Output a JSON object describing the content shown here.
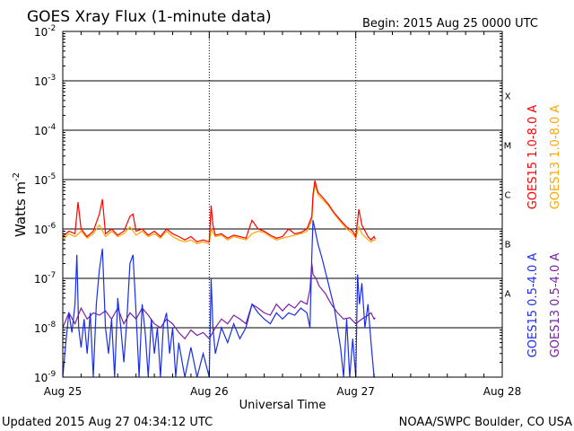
{
  "chart_data": {
    "type": "line",
    "title": "GOES Xray Flux (1-minute data)",
    "begin_label": "Begin:  2015 Aug 25 0000 UTC",
    "xlabel": "Universal Time",
    "ylabel": "Watts m",
    "ylabel_sup": "-2",
    "footer_left": "Updated 2015 Aug 27 04:34:12 UTC",
    "footer_right": "NOAA/SWPC Boulder, CO USA",
    "x_unit": "hours since 2015 Aug 25 0000 UTC",
    "x_range": [
      0,
      72
    ],
    "x_ticks": [
      {
        "value": 0,
        "label": "Aug 25"
      },
      {
        "value": 24,
        "label": "Aug 26"
      },
      {
        "value": 48,
        "label": "Aug 27"
      },
      {
        "value": 72,
        "label": "Aug 28"
      }
    ],
    "y_scale": "log",
    "y_range": [
      1e-09,
      0.01
    ],
    "y_ticks": [
      {
        "value": 0.01,
        "mant": "10",
        "exp": "-2"
      },
      {
        "value": 0.001,
        "mant": "10",
        "exp": "-3"
      },
      {
        "value": 0.0001,
        "mant": "10",
        "exp": "-4"
      },
      {
        "value": 1e-05,
        "mant": "10",
        "exp": "-5"
      },
      {
        "value": 1e-06,
        "mant": "10",
        "exp": "-6"
      },
      {
        "value": 1e-07,
        "mant": "10",
        "exp": "-7"
      },
      {
        "value": 1e-08,
        "mant": "10",
        "exp": "-8"
      },
      {
        "value": 1e-09,
        "mant": "10",
        "exp": "-9"
      }
    ],
    "flare_classes": [
      {
        "label": "X",
        "value": 0.0005
      },
      {
        "label": "M",
        "value": 5e-05
      },
      {
        "label": "C",
        "value": 5e-06
      },
      {
        "label": "B",
        "value": 5e-07
      },
      {
        "label": "A",
        "value": 5e-08
      }
    ],
    "data_gaps_hours": [
      24,
      48
    ],
    "series": [
      {
        "name": "GOES13 1.0-8.0 A",
        "color": "#ffa500",
        "points": [
          [
            0,
            6e-07
          ],
          [
            1,
            8e-07
          ],
          [
            2,
            7e-07
          ],
          [
            3,
            9e-07
          ],
          [
            4,
            6.5e-07
          ],
          [
            5,
            8e-07
          ],
          [
            6,
            1.2e-06
          ],
          [
            7,
            7e-07
          ],
          [
            8,
            9e-07
          ],
          [
            9,
            7e-07
          ],
          [
            10,
            8e-07
          ],
          [
            11,
            1.1e-06
          ],
          [
            12,
            7.5e-07
          ],
          [
            13,
            9e-07
          ],
          [
            14,
            7e-07
          ],
          [
            15,
            8e-07
          ],
          [
            16,
            6.5e-07
          ],
          [
            17,
            9e-07
          ],
          [
            18,
            7e-07
          ],
          [
            19,
            6e-07
          ],
          [
            20,
            5.5e-07
          ],
          [
            21,
            6e-07
          ],
          [
            22,
            5e-07
          ],
          [
            23,
            5.5e-07
          ],
          [
            24,
            5e-07
          ],
          [
            24.3,
            1e-06
          ],
          [
            25,
            7e-07
          ],
          [
            26,
            7.5e-07
          ],
          [
            27,
            6e-07
          ],
          [
            28,
            7e-07
          ],
          [
            29,
            6.5e-07
          ],
          [
            30,
            6e-07
          ],
          [
            31,
            8e-07
          ],
          [
            32,
            9e-07
          ],
          [
            33,
            8.5e-07
          ],
          [
            34,
            7e-07
          ],
          [
            35,
            6e-07
          ],
          [
            36,
            6.5e-07
          ],
          [
            37,
            7e-07
          ],
          [
            38,
            7.5e-07
          ],
          [
            39,
            8e-07
          ],
          [
            40,
            9e-07
          ],
          [
            40.8,
            1.5e-06
          ],
          [
            41,
            4e-06
          ],
          [
            41.3,
            8e-06
          ],
          [
            41.8,
            5e-06
          ],
          [
            42.5,
            4e-06
          ],
          [
            43.5,
            3e-06
          ],
          [
            44.5,
            2e-06
          ],
          [
            45.5,
            1.4e-06
          ],
          [
            46.5,
            1e-06
          ],
          [
            47.5,
            8e-07
          ],
          [
            48,
            6.5e-07
          ],
          [
            48.5,
            1.1e-06
          ],
          [
            49,
            8e-07
          ],
          [
            50,
            6e-07
          ],
          [
            50.5,
            5.5e-07
          ],
          [
            51,
            6e-07
          ],
          [
            51.2,
            5.8e-07
          ]
        ]
      },
      {
        "name": "GOES15 1.0-8.0 A",
        "color": "#ff0000",
        "points": [
          [
            0,
            7e-07
          ],
          [
            1,
            9e-07
          ],
          [
            2,
            8e-07
          ],
          [
            2.5,
            3.5e-06
          ],
          [
            3,
            1e-06
          ],
          [
            4,
            7e-07
          ],
          [
            5,
            9e-07
          ],
          [
            6,
            2e-06
          ],
          [
            6.5,
            4e-06
          ],
          [
            7,
            8e-07
          ],
          [
            8,
            1e-06
          ],
          [
            9,
            7.5e-07
          ],
          [
            10,
            9e-07
          ],
          [
            11,
            1.8e-06
          ],
          [
            11.5,
            2e-06
          ],
          [
            12,
            9e-07
          ],
          [
            13,
            1e-06
          ],
          [
            14,
            7.5e-07
          ],
          [
            15,
            9e-07
          ],
          [
            16,
            7e-07
          ],
          [
            17,
            1e-06
          ],
          [
            18,
            8e-07
          ],
          [
            19,
            7e-07
          ],
          [
            20,
            6e-07
          ],
          [
            21,
            7e-07
          ],
          [
            22,
            5.5e-07
          ],
          [
            23,
            6e-07
          ],
          [
            24,
            5.5e-07
          ],
          [
            24.3,
            3e-06
          ],
          [
            24.6,
            1.2e-06
          ],
          [
            25,
            7.5e-07
          ],
          [
            26,
            8e-07
          ],
          [
            27,
            6.5e-07
          ],
          [
            28,
            7.5e-07
          ],
          [
            29,
            7e-07
          ],
          [
            30,
            6.5e-07
          ],
          [
            31,
            1.5e-06
          ],
          [
            32,
            1e-06
          ],
          [
            33,
            9e-07
          ],
          [
            34,
            7.5e-07
          ],
          [
            35,
            6.5e-07
          ],
          [
            36,
            7e-07
          ],
          [
            37,
            1e-06
          ],
          [
            38,
            8e-07
          ],
          [
            39,
            8.5e-07
          ],
          [
            40,
            1e-06
          ],
          [
            40.8,
            1.8e-06
          ],
          [
            41,
            5e-06
          ],
          [
            41.3,
            9.5e-06
          ],
          [
            41.8,
            5.5e-06
          ],
          [
            42.5,
            4.5e-06
          ],
          [
            43.5,
            3.2e-06
          ],
          [
            44.5,
            2.1e-06
          ],
          [
            45.5,
            1.5e-06
          ],
          [
            46.5,
            1.1e-06
          ],
          [
            47.5,
            9e-07
          ],
          [
            48,
            7e-07
          ],
          [
            48.5,
            2.5e-06
          ],
          [
            49,
            1.2e-06
          ],
          [
            50,
            7e-07
          ],
          [
            50.5,
            6e-07
          ],
          [
            51,
            7e-07
          ],
          [
            51.2,
            6.2e-07
          ]
        ]
      },
      {
        "name": "GOES13 0.5-4.0 A",
        "color": "#7b1fa2",
        "points": [
          [
            0,
            1e-08
          ],
          [
            1,
            2e-08
          ],
          [
            2,
            1.2e-08
          ],
          [
            3,
            2.5e-08
          ],
          [
            4,
            1.5e-08
          ],
          [
            5,
            2e-08
          ],
          [
            6,
            1.8e-08
          ],
          [
            7,
            2.2e-08
          ],
          [
            8,
            1.5e-08
          ],
          [
            9,
            2.5e-08
          ],
          [
            10,
            1.2e-08
          ],
          [
            11,
            2e-08
          ],
          [
            12,
            1.5e-08
          ],
          [
            13,
            2.5e-08
          ],
          [
            14,
            1.8e-08
          ],
          [
            15,
            1.2e-08
          ],
          [
            16,
            1e-08
          ],
          [
            17,
            1.5e-08
          ],
          [
            18,
            1.2e-08
          ],
          [
            19,
            8e-09
          ],
          [
            20,
            6e-09
          ],
          [
            21,
            9e-09
          ],
          [
            22,
            7e-09
          ],
          [
            23,
            8e-09
          ],
          [
            24,
            6e-09
          ],
          [
            25,
            1e-08
          ],
          [
            26,
            1.5e-08
          ],
          [
            27,
            1.2e-08
          ],
          [
            28,
            1.8e-08
          ],
          [
            29,
            1.5e-08
          ],
          [
            30,
            1.2e-08
          ],
          [
            31,
            3e-08
          ],
          [
            32,
            2.5e-08
          ],
          [
            33,
            2e-08
          ],
          [
            34,
            1.8e-08
          ],
          [
            35,
            3e-08
          ],
          [
            36,
            2.2e-08
          ],
          [
            37,
            3e-08
          ],
          [
            38,
            2.5e-08
          ],
          [
            39,
            3.5e-08
          ],
          [
            40,
            3e-08
          ],
          [
            40.5,
            6e-08
          ],
          [
            40.8,
            2e-07
          ],
          [
            41,
            1.2e-07
          ],
          [
            41.5,
            1e-07
          ],
          [
            42,
            7e-08
          ],
          [
            43,
            5e-08
          ],
          [
            44,
            3e-08
          ],
          [
            45,
            2e-08
          ],
          [
            46,
            1.5e-08
          ],
          [
            47,
            1.6e-08
          ],
          [
            48,
            1.2e-08
          ],
          [
            49,
            1.5e-08
          ],
          [
            50,
            1.8e-08
          ],
          [
            50.5,
            2e-08
          ],
          [
            51,
            1.5e-08
          ],
          [
            51.2,
            1.6e-08
          ]
        ]
      },
      {
        "name": "GOES15 0.5-4.0 A",
        "color": "#1a2ee8",
        "points": [
          [
            0,
            1e-09
          ],
          [
            0.5,
            5e-09
          ],
          [
            1,
            2e-08
          ],
          [
            1.5,
            8e-09
          ],
          [
            2,
            3e-08
          ],
          [
            2.3,
            3e-07
          ],
          [
            2.6,
            1e-08
          ],
          [
            3,
            4e-09
          ],
          [
            3.5,
            1.5e-08
          ],
          [
            4,
            3e-09
          ],
          [
            4.5,
            2e-08
          ],
          [
            5,
            1e-09
          ],
          [
            5.5,
            3e-08
          ],
          [
            6,
            1.5e-07
          ],
          [
            6.5,
            4e-07
          ],
          [
            7,
            1e-08
          ],
          [
            7.5,
            3e-09
          ],
          [
            8,
            1.5e-08
          ],
          [
            8.5,
            1e-09
          ],
          [
            9,
            4e-08
          ],
          [
            9.5,
            1e-08
          ],
          [
            10,
            2e-09
          ],
          [
            10.5,
            1.5e-08
          ],
          [
            11,
            2e-07
          ],
          [
            11.5,
            3e-07
          ],
          [
            12,
            2e-08
          ],
          [
            12.5,
            1e-09
          ],
          [
            13,
            3e-08
          ],
          [
            13.5,
            8e-09
          ],
          [
            14,
            1e-09
          ],
          [
            14.5,
            1.5e-08
          ],
          [
            15,
            3e-09
          ],
          [
            15.5,
            1e-08
          ],
          [
            16,
            1e-09
          ],
          [
            16.5,
            1.2e-08
          ],
          [
            17,
            2e-08
          ],
          [
            17.5,
            3e-09
          ],
          [
            18,
            1e-08
          ],
          [
            18.5,
            1e-09
          ],
          [
            19,
            5e-09
          ],
          [
            20,
            1e-09
          ],
          [
            21,
            4e-09
          ],
          [
            22,
            1e-09
          ],
          [
            23,
            3e-09
          ],
          [
            24,
            1e-09
          ],
          [
            24.3,
            1e-07
          ],
          [
            24.6,
            1e-08
          ],
          [
            25,
            3e-09
          ],
          [
            26,
            1e-08
          ],
          [
            27,
            5e-09
          ],
          [
            28,
            1.2e-08
          ],
          [
            29,
            6e-09
          ],
          [
            30,
            1e-08
          ],
          [
            31,
            3e-08
          ],
          [
            32,
            2e-08
          ],
          [
            33,
            1.5e-08
          ],
          [
            34,
            1.2e-08
          ],
          [
            35,
            2e-08
          ],
          [
            36,
            1.5e-08
          ],
          [
            37,
            2e-08
          ],
          [
            38,
            1.8e-08
          ],
          [
            39,
            2.5e-08
          ],
          [
            40,
            2e-08
          ],
          [
            40.5,
            1e-08
          ],
          [
            40.8,
            3e-07
          ],
          [
            41,
            1.5e-06
          ],
          [
            41.3,
            1e-06
          ],
          [
            41.8,
            5e-07
          ],
          [
            42.5,
            2.5e-07
          ],
          [
            43.5,
            8e-08
          ],
          [
            44.5,
            2.5e-08
          ],
          [
            45.5,
            4e-09
          ],
          [
            46,
            1e-09
          ],
          [
            46.5,
            1.5e-08
          ],
          [
            47,
            1e-09
          ],
          [
            47.5,
            6e-09
          ],
          [
            48,
            1e-09
          ],
          [
            48.3,
            1.2e-07
          ],
          [
            48.6,
            3e-08
          ],
          [
            49,
            8e-08
          ],
          [
            49.5,
            1e-08
          ],
          [
            50,
            3e-08
          ],
          [
            50.5,
            5e-09
          ],
          [
            51,
            1e-09
          ],
          [
            51.2,
            1e-09
          ]
        ]
      }
    ],
    "legend_placement": "right, vertical labels"
  }
}
